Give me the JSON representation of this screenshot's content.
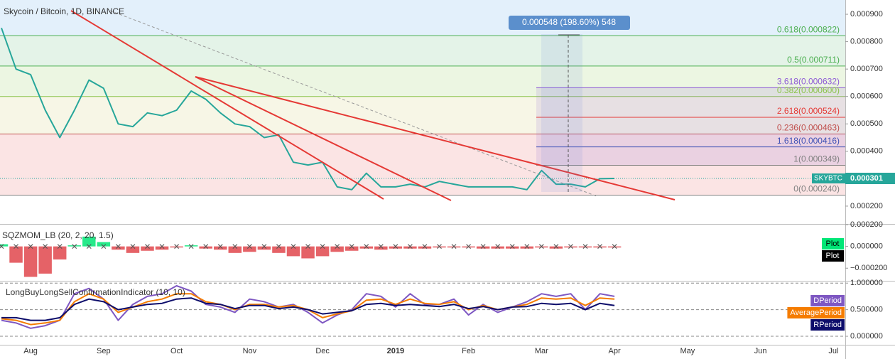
{
  "chart_data": [
    {
      "type": "line",
      "title": "Skycoin / Bitcoin, 1D, BINANCE",
      "categories": [
        null,
        null,
        "Aug",
        null,
        null,
        null,
        null,
        "Sep",
        null,
        null,
        null,
        null,
        "Oct",
        null,
        null,
        null,
        null,
        "Nov",
        null,
        null,
        null,
        null,
        "Dec",
        null,
        null,
        null,
        null,
        "2019",
        null,
        null,
        null,
        null,
        "Feb",
        null,
        null,
        null,
        null,
        "Mar",
        null,
        null,
        null,
        null,
        "Apr",
        null,
        null,
        null,
        null,
        "May",
        null,
        null,
        null,
        null,
        "Jun",
        null,
        null,
        null,
        null,
        "Jul"
      ],
      "series": [
        {
          "name": "SKYBTC",
          "color": "#26a69a",
          "values": [
            0.00085,
            0.0007,
            0.00068,
            0.00055,
            0.00045,
            0.00055,
            0.00066,
            0.00063,
            0.0005,
            0.00049,
            0.00054,
            0.00053,
            0.00055,
            0.00062,
            0.00059,
            0.00054,
            0.0005,
            0.00049,
            0.00045,
            0.00046,
            0.00036,
            0.00035,
            0.00036,
            0.00027,
            0.00026,
            0.00032,
            0.00027,
            0.00027,
            0.00028,
            0.00027,
            0.00029,
            0.00028,
            0.00027,
            0.00027,
            0.00027,
            0.00027,
            0.00026,
            0.00033,
            0.00028,
            0.00028,
            0.00027,
            0.0003,
            0.000301,
            null,
            null,
            null,
            null,
            null,
            null,
            null,
            null,
            null,
            null,
            null,
            null,
            null,
            null,
            null
          ]
        }
      ],
      "ylim": [
        0.000135,
        0.000952
      ],
      "yticks": [
        {
          "value": 0.0009,
          "label": "0.000900"
        },
        {
          "value": 0.0008,
          "label": "0.000800"
        },
        {
          "value": 0.0007,
          "label": "0.000700"
        },
        {
          "value": 0.0006,
          "label": "0.000600"
        },
        {
          "value": 0.0005,
          "label": "0.000500"
        },
        {
          "value": 0.0004,
          "label": "0.000400"
        },
        {
          "value": 0.0003,
          "label": "0.000300"
        },
        {
          "value": 0.0002,
          "label": "0.000200"
        }
      ],
      "background": "#e3f0fb",
      "fib_levels": [
        {
          "label": "0.618(0.000822)",
          "value": 0.000822,
          "color": "#4caf50",
          "fill": "#e4f3e8"
        },
        {
          "label": "0.5(0.000711)",
          "value": 0.000711,
          "color": "#4caf50",
          "fill": "#ecf6e2"
        },
        {
          "label": "0.382(0.000600)",
          "value": 0.0006,
          "color": "#8bc34a",
          "fill": "#f7f6e6"
        },
        {
          "label": "0.236(0.000463)",
          "value": 0.000463,
          "color": "#c0504d",
          "fill": "#fbe4e4"
        },
        {
          "label": "0(0.000240)",
          "value": 0.00024,
          "color": "#808080",
          "fill": "#ffffff"
        }
      ],
      "fib_extension": [
        {
          "label": "3.618(0.000632)",
          "value": 0.000632,
          "color": "#8e5bd6"
        },
        {
          "label": "2.618(0.000524)",
          "value": 0.000524,
          "color": "#e53935"
        },
        {
          "label": "1.618(0.000416)",
          "value": 0.000416,
          "color": "#3f51b5"
        },
        {
          "label": "1(0.000349)",
          "value": 0.000349,
          "color": "#808080"
        }
      ],
      "extension_fill": "rgba(150,110,210,0.16)",
      "annotations": [
        "0.000548 (198.60%) 548"
      ]
    },
    {
      "type": "bar",
      "title": "SQZMOM_LB (20, 2, 20, 1.5)",
      "series": [
        {
          "name": "Plot",
          "color": "#00e676",
          "negative_color": "#e0474c",
          "style": "histogram",
          "values": [
            2e-05,
            -0.00015,
            -0.00028,
            -0.00025,
            -0.00012,
            1e-05,
            9e-05,
            4e-05,
            -3e-05,
            -6e-05,
            -4e-05,
            -3e-05,
            -1e-05,
            1e-05,
            -2e-05,
            -3e-05,
            -6e-05,
            -5e-05,
            -3e-05,
            -6e-05,
            -9e-05,
            -0.00011,
            -9e-05,
            -5e-05,
            -4e-05,
            -2e-05,
            -3e-05,
            -2e-05,
            -2e-05,
            -2e-05,
            -1e-05,
            -1e-05,
            -1e-05,
            -2e-05,
            -2e-05,
            -2e-05,
            -2e-05,
            -1e-05,
            -2e-05,
            -1e-05,
            -1e-05,
            -1e-05,
            -1e-05,
            null,
            null,
            null,
            null,
            null,
            null,
            null,
            null,
            null,
            null,
            null,
            null,
            null,
            null,
            null
          ]
        },
        {
          "name": "Plot",
          "color": "#000000",
          "style": "cross",
          "values": [
            0,
            0,
            0,
            0,
            0,
            0,
            0,
            0,
            0,
            0,
            0,
            0,
            0,
            0,
            0,
            0,
            0,
            0,
            0,
            0,
            0,
            0,
            0,
            0,
            0,
            0,
            0,
            0,
            0,
            0,
            0,
            0,
            0,
            0,
            0,
            0,
            0,
            0,
            0,
            0,
            0,
            0,
            0,
            null,
            null,
            null,
            null,
            null,
            null,
            null,
            null,
            null,
            null,
            null,
            null,
            null,
            null,
            null
          ]
        }
      ],
      "ylim": [
        -0.000316,
        0.0002
      ],
      "yticks": [
        {
          "value": 0.0002,
          "label": "0.000200"
        },
        {
          "value": 0,
          "label": "0.000000"
        },
        {
          "value": -0.0002,
          "label": "−0.000200"
        }
      ]
    },
    {
      "type": "line",
      "title": "LongBuyLongSellConfirmationIndicator (10, 10)",
      "series": [
        {
          "name": "DPeriod",
          "color": "#7e57c2",
          "values": [
            0.3,
            0.25,
            0.15,
            0.2,
            0.3,
            0.8,
            0.9,
            0.7,
            0.3,
            0.6,
            0.75,
            0.8,
            0.95,
            0.85,
            0.6,
            0.55,
            0.45,
            0.7,
            0.65,
            0.55,
            0.6,
            0.45,
            0.25,
            0.4,
            0.5,
            0.8,
            0.75,
            0.55,
            0.8,
            0.6,
            0.6,
            0.7,
            0.4,
            0.6,
            0.45,
            0.55,
            0.65,
            0.8,
            0.75,
            0.8,
            0.5,
            0.8,
            0.75,
            null,
            null,
            null,
            null,
            null,
            null,
            null,
            null,
            null,
            null,
            null,
            null,
            null,
            null,
            null
          ]
        },
        {
          "name": "AveragePeriod",
          "color": "#f57c00",
          "values": [
            0.33,
            0.3,
            0.22,
            0.25,
            0.3,
            0.65,
            0.8,
            0.7,
            0.45,
            0.55,
            0.65,
            0.7,
            0.8,
            0.8,
            0.65,
            0.6,
            0.5,
            0.6,
            0.6,
            0.55,
            0.58,
            0.5,
            0.35,
            0.42,
            0.48,
            0.68,
            0.7,
            0.6,
            0.7,
            0.62,
            0.6,
            0.65,
            0.5,
            0.58,
            0.5,
            0.55,
            0.6,
            0.72,
            0.7,
            0.72,
            0.58,
            0.72,
            0.7,
            null,
            null,
            null,
            null,
            null,
            null,
            null,
            null,
            null,
            null,
            null,
            null,
            null,
            null,
            null
          ]
        },
        {
          "name": "RPeriod",
          "color": "#0d0d6b",
          "values": [
            0.35,
            0.35,
            0.3,
            0.3,
            0.35,
            0.6,
            0.7,
            0.65,
            0.5,
            0.55,
            0.6,
            0.62,
            0.7,
            0.72,
            0.62,
            0.6,
            0.52,
            0.58,
            0.58,
            0.52,
            0.55,
            0.5,
            0.42,
            0.45,
            0.48,
            0.6,
            0.62,
            0.58,
            0.6,
            0.58,
            0.56,
            0.6,
            0.52,
            0.56,
            0.5,
            0.55,
            0.56,
            0.62,
            0.6,
            0.62,
            0.5,
            0.62,
            0.58,
            null,
            null,
            null,
            null,
            null,
            null,
            null,
            null,
            null,
            null,
            null,
            null,
            null,
            null,
            null
          ]
        }
      ],
      "ylim": [
        -0.16,
        1.03
      ],
      "yticks": [
        {
          "value": 1,
          "label": "1.000000"
        },
        {
          "value": 0.5,
          "label": "0.500000"
        },
        {
          "value": 0,
          "label": "0.000000"
        }
      ],
      "grid": "dashed"
    }
  ]
}
